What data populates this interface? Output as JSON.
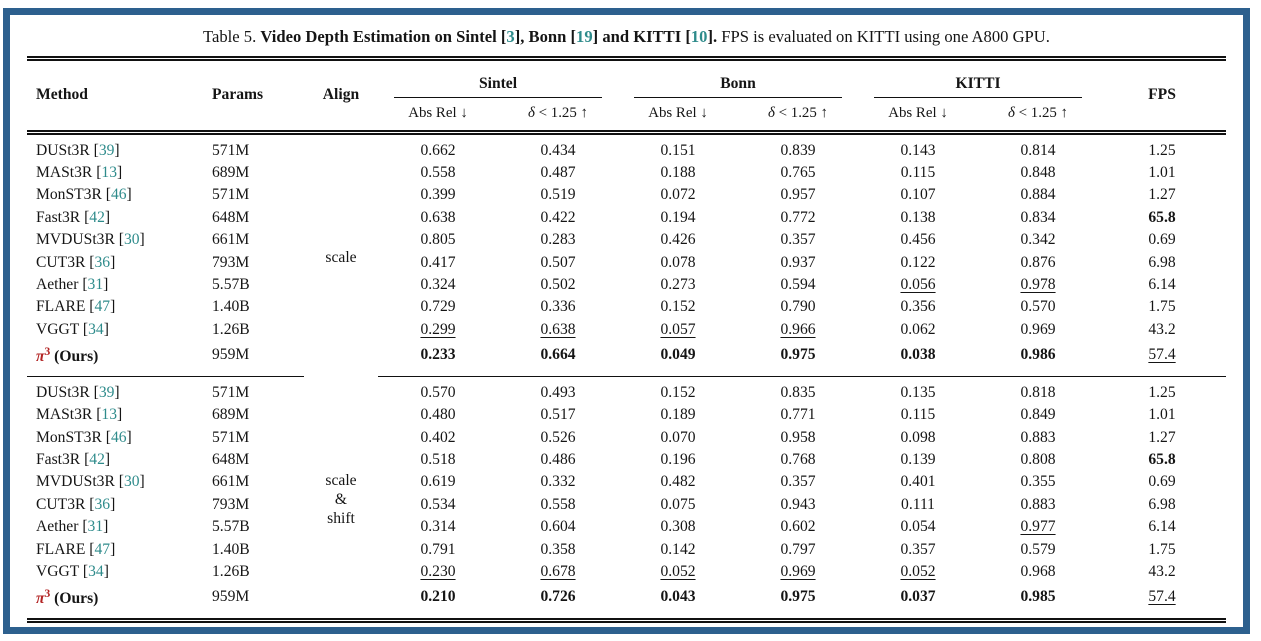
{
  "page": {
    "frame_color": "#2d608e",
    "cite_color": "#2e8b8b",
    "ours_color": "#b22222"
  },
  "title": {
    "segments": [
      {
        "t": "Table 5. "
      },
      {
        "t": "Video Depth Estimation on Sintel [",
        "b": true
      },
      {
        "t": "3",
        "b": true,
        "cite": true
      },
      {
        "t": "], Bonn [",
        "b": true
      },
      {
        "t": "19",
        "b": true,
        "cite": true
      },
      {
        "t": "] and KITTI [",
        "b": true
      },
      {
        "t": "10",
        "b": true,
        "cite": true
      },
      {
        "t": "].",
        "b": true
      },
      {
        "t": " FPS is evaluated on KITTI using one A800 GPU."
      }
    ]
  },
  "table": {
    "header": {
      "method": "Method",
      "params": "Params",
      "align": "Align",
      "fps": "FPS",
      "groups": [
        {
          "name": "Sintel"
        },
        {
          "name": "Bonn"
        },
        {
          "name": "KITTI"
        }
      ],
      "sub_metric1": "Abs Rel ↓",
      "sub_metric2_sym": "δ",
      "sub_metric2_rest": " < 1.25 ↑"
    },
    "sections": [
      {
        "align": [
          "scale"
        ],
        "rows": [
          {
            "method": "DUSt3R",
            "cite": "39",
            "params": "571M",
            "vals": [
              "0.662",
              "0.434",
              "0.151",
              "0.839",
              "0.143",
              "0.814",
              "1.25"
            ],
            "flags": [
              "",
              "",
              "",
              "",
              "",
              "",
              ""
            ]
          },
          {
            "method": "MASt3R",
            "cite": "13",
            "params": "689M",
            "vals": [
              "0.558",
              "0.487",
              "0.188",
              "0.765",
              "0.115",
              "0.848",
              "1.01"
            ],
            "flags": [
              "",
              "",
              "",
              "",
              "",
              "",
              ""
            ]
          },
          {
            "method": "MonST3R",
            "cite": "46",
            "params": "571M",
            "vals": [
              "0.399",
              "0.519",
              "0.072",
              "0.957",
              "0.107",
              "0.884",
              "1.27"
            ],
            "flags": [
              "",
              "",
              "",
              "",
              "",
              "",
              ""
            ]
          },
          {
            "method": "Fast3R",
            "cite": "42",
            "params": "648M",
            "vals": [
              "0.638",
              "0.422",
              "0.194",
              "0.772",
              "0.138",
              "0.834",
              "65.8"
            ],
            "flags": [
              "",
              "",
              "",
              "",
              "",
              "",
              "b"
            ]
          },
          {
            "method": "MVDUSt3R",
            "cite": "30",
            "params": "661M",
            "vals": [
              "0.805",
              "0.283",
              "0.426",
              "0.357",
              "0.456",
              "0.342",
              "0.69"
            ],
            "flags": [
              "",
              "",
              "",
              "",
              "",
              "",
              ""
            ]
          },
          {
            "method": "CUT3R",
            "cite": "36",
            "params": "793M",
            "vals": [
              "0.417",
              "0.507",
              "0.078",
              "0.937",
              "0.122",
              "0.876",
              "6.98"
            ],
            "flags": [
              "",
              "",
              "",
              "",
              "",
              "",
              ""
            ]
          },
          {
            "method": "Aether",
            "cite": "31",
            "params": "5.57B",
            "vals": [
              "0.324",
              "0.502",
              "0.273",
              "0.594",
              "0.056",
              "0.978",
              "6.14"
            ],
            "flags": [
              "",
              "",
              "",
              "",
              "u",
              "u",
              ""
            ]
          },
          {
            "method": "FLARE",
            "cite": "47",
            "params": "1.40B",
            "vals": [
              "0.729",
              "0.336",
              "0.152",
              "0.790",
              "0.356",
              "0.570",
              "1.75"
            ],
            "flags": [
              "",
              "",
              "",
              "",
              "",
              "",
              ""
            ]
          },
          {
            "method": "VGGT",
            "cite": "34",
            "params": "1.26B",
            "vals": [
              "0.299",
              "0.638",
              "0.057",
              "0.966",
              "0.062",
              "0.969",
              "43.2"
            ],
            "flags": [
              "u",
              "u",
              "u",
              "u",
              "",
              "",
              ""
            ]
          },
          {
            "method": "π",
            "sup": "3",
            "ours": "(Ours)",
            "params": "959M",
            "vals": [
              "0.233",
              "0.664",
              "0.049",
              "0.975",
              "0.038",
              "0.986",
              "57.4"
            ],
            "flags": [
              "b",
              "b",
              "b",
              "b",
              "b",
              "b",
              "u"
            ]
          }
        ]
      },
      {
        "align": [
          "scale",
          "&",
          "shift"
        ],
        "rows": [
          {
            "method": "DUSt3R",
            "cite": "39",
            "params": "571M",
            "vals": [
              "0.570",
              "0.493",
              "0.152",
              "0.835",
              "0.135",
              "0.818",
              "1.25"
            ],
            "flags": [
              "",
              "",
              "",
              "",
              "",
              "",
              ""
            ]
          },
          {
            "method": "MASt3R",
            "cite": "13",
            "params": "689M",
            "vals": [
              "0.480",
              "0.517",
              "0.189",
              "0.771",
              "0.115",
              "0.849",
              "1.01"
            ],
            "flags": [
              "",
              "",
              "",
              "",
              "",
              "",
              ""
            ]
          },
          {
            "method": "MonST3R",
            "cite": "46",
            "params": "571M",
            "vals": [
              "0.402",
              "0.526",
              "0.070",
              "0.958",
              "0.098",
              "0.883",
              "1.27"
            ],
            "flags": [
              "",
              "",
              "",
              "",
              "",
              "",
              ""
            ]
          },
          {
            "method": "Fast3R",
            "cite": "42",
            "params": "648M",
            "vals": [
              "0.518",
              "0.486",
              "0.196",
              "0.768",
              "0.139",
              "0.808",
              "65.8"
            ],
            "flags": [
              "",
              "",
              "",
              "",
              "",
              "",
              "b"
            ]
          },
          {
            "method": "MVDUSt3R",
            "cite": "30",
            "params": "661M",
            "vals": [
              "0.619",
              "0.332",
              "0.482",
              "0.357",
              "0.401",
              "0.355",
              "0.69"
            ],
            "flags": [
              "",
              "",
              "",
              "",
              "",
              "",
              ""
            ]
          },
          {
            "method": "CUT3R",
            "cite": "36",
            "params": "793M",
            "vals": [
              "0.534",
              "0.558",
              "0.075",
              "0.943",
              "0.111",
              "0.883",
              "6.98"
            ],
            "flags": [
              "",
              "",
              "",
              "",
              "",
              "",
              ""
            ]
          },
          {
            "method": "Aether",
            "cite": "31",
            "params": "5.57B",
            "vals": [
              "0.314",
              "0.604",
              "0.308",
              "0.602",
              "0.054",
              "0.977",
              "6.14"
            ],
            "flags": [
              "",
              "",
              "",
              "",
              "",
              "u",
              ""
            ]
          },
          {
            "method": "FLARE",
            "cite": "47",
            "params": "1.40B",
            "vals": [
              "0.791",
              "0.358",
              "0.142",
              "0.797",
              "0.357",
              "0.579",
              "1.75"
            ],
            "flags": [
              "",
              "",
              "",
              "",
              "",
              "",
              ""
            ]
          },
          {
            "method": "VGGT",
            "cite": "34",
            "params": "1.26B",
            "vals": [
              "0.230",
              "0.678",
              "0.052",
              "0.969",
              "0.052",
              "0.968",
              "43.2"
            ],
            "flags": [
              "u",
              "u",
              "u",
              "u",
              "u",
              "",
              ""
            ]
          },
          {
            "method": "π",
            "sup": "3",
            "ours": "(Ours)",
            "params": "959M",
            "vals": [
              "0.210",
              "0.726",
              "0.043",
              "0.975",
              "0.037",
              "0.985",
              "57.4"
            ],
            "flags": [
              "b",
              "b",
              "b",
              "b",
              "b",
              "b",
              "u"
            ]
          }
        ]
      }
    ]
  }
}
